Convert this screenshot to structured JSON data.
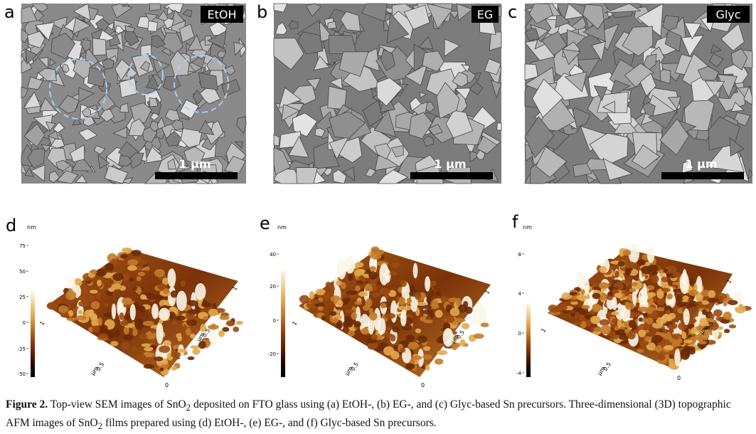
{
  "sem": [
    {
      "label": "a",
      "tag": "EtOH",
      "scale_bar": "1 μm"
    },
    {
      "label": "b",
      "tag": "EG",
      "scale_bar": "1 μm"
    },
    {
      "label": "c",
      "tag": "Glyc",
      "scale_bar": "1 μm"
    }
  ],
  "afm": [
    {
      "label": "d",
      "unit": "nm",
      "colorbar_ticks": [
        75,
        50,
        25,
        0,
        -25,
        -50
      ],
      "axis": {
        "far": "1",
        "mid_left": "0.5",
        "mid_right": "0.5",
        "unit": "μm",
        "origin": "0",
        "right": "1"
      }
    },
    {
      "label": "e",
      "unit": "nm",
      "colorbar_ticks": [
        40,
        20,
        0,
        -20
      ],
      "axis": {
        "far": "1",
        "mid_left": "0.5",
        "mid_right": "0.5",
        "unit": "μm",
        "origin": "0",
        "right": "1"
      }
    },
    {
      "label": "f",
      "unit": "nm",
      "colorbar_ticks": [
        8,
        4,
        0,
        -4
      ],
      "axis": {
        "far": "1",
        "mid_left": "0.5",
        "mid_right": "0.5",
        "unit": "μm",
        "origin": "0",
        "right": "1"
      }
    }
  ],
  "caption": {
    "title": "Figure 2.",
    "parts": [
      " Top-view SEM images of SnO",
      "2",
      " deposited on FTO glass using (a) EtOH-, (b) EG-, and (c) Glyc-based Sn precursors. Three-dimensional (3D) topographic AFM images of SnO",
      "2",
      " films prepared using (d) EtOH-, (e) EG-, and (f) Glyc-based Sn precursors."
    ]
  }
}
